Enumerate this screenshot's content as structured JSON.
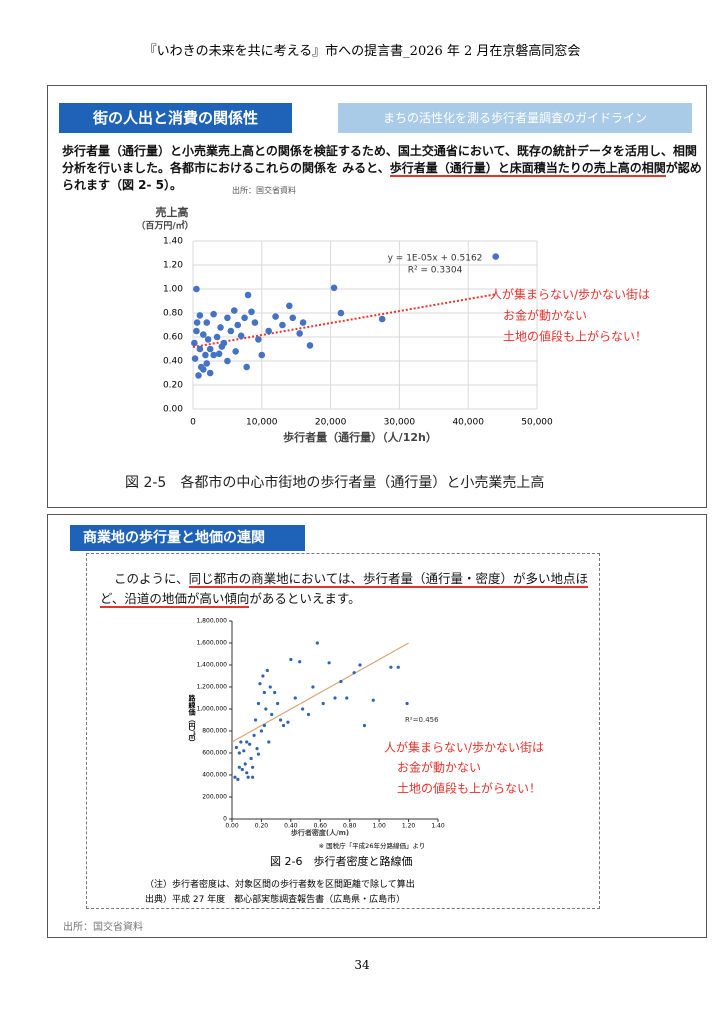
{
  "header": {
    "title": "『いわきの未来を共に考える』市への提言書_2026 年 2 月在京磐高同窓会"
  },
  "section1": {
    "heading": "街の人出と消費の関係性",
    "tab": "まちの活性化を測る歩行者量調査のガイドライン",
    "paragraph": [
      {
        "text": "歩行者量（通行量）と小売業売上高との関係を検証するため、国土交通省において、既存の統計データを活用し、相関分析を行いました。各都市におけるこれらの関係を みると、",
        "underline": false
      },
      {
        "text": "歩行者量（通行量）と床面積当たりの売上高の相関",
        "underline": true
      },
      {
        "text": "が認められます（図 2- 5）。",
        "underline": false
      }
    ],
    "source": "出所：国交省資料",
    "caption": "図 2-5　各都市の中心市街地の歩行者量（通行量）と小売業売上高"
  },
  "section2": {
    "heading": "商業地の歩行量と地価の連関",
    "paragraph": [
      {
        "text": "このように、",
        "underline": false
      },
      {
        "text": "同じ都市の商業地においては、歩行者量（通行量・密度）が多い地点ほど、沿道の地価が高い傾向",
        "underline": true
      },
      {
        "text": "があるといえます。",
        "underline": false
      }
    ],
    "caption": "図 2-6　歩行者密度と路線価",
    "notes": [
      "（注）歩行者密度は、対象区間の歩行者数を区間距離で除して算出",
      "出典）平成 27 年度　都心部実態調査報告書（広島県・広島市）"
    ],
    "source": "出所：国交省資料"
  },
  "chart_data": [
    {
      "type": "scatter",
      "y_label": "売上高",
      "y_unit": "（百万円/㎡）",
      "x_label": "歩行者量（通行量）（人/12h）",
      "color": "#4472c4",
      "grid": true,
      "xlim": [
        0,
        50000
      ],
      "xticks": [
        0,
        {
          "value": 10000,
          "label": "10,000"
        },
        {
          "value": 20000,
          "label": "20,000"
        },
        {
          "value": 30000,
          "label": "30,000"
        },
        {
          "value": 40000,
          "label": "40,000"
        },
        {
          "value": 50000,
          "label": "50,000"
        }
      ],
      "ylim": [
        0,
        1.4
      ],
      "yticks": [
        {
          "value": 0,
          "label": "0.00"
        },
        {
          "value": 0.2,
          "label": "0.20"
        },
        {
          "value": 0.4,
          "label": "0.40"
        },
        {
          "value": 0.6,
          "label": "0.60"
        },
        {
          "value": 0.8,
          "label": "0.80"
        },
        {
          "value": 1.0,
          "label": "1.00"
        },
        {
          "value": 1.2,
          "label": "1.20"
        },
        {
          "value": 1.4,
          "label": "1.40"
        }
      ],
      "x": [
        44000,
        20500,
        14000,
        21500,
        27500,
        17000,
        15500,
        14500,
        16000,
        13000,
        11000,
        10000,
        12000,
        9000,
        8500,
        8000,
        7500,
        7000,
        6500,
        6000,
        5500,
        5000,
        5000,
        4500,
        4000,
        3500,
        3000,
        3000,
        2500,
        2000,
        2000,
        1500,
        1500,
        1000,
        1000,
        800,
        500,
        500,
        300,
        200,
        1200,
        2500,
        3800,
        6200,
        9500,
        7800,
        4200,
        2200,
        600,
        1800
      ],
      "values": [
        1.27,
        1.01,
        0.86,
        0.8,
        0.75,
        0.53,
        0.63,
        0.76,
        0.72,
        0.7,
        0.65,
        0.45,
        0.77,
        0.72,
        0.81,
        0.95,
        0.76,
        0.61,
        0.7,
        0.82,
        0.65,
        0.76,
        0.4,
        0.55,
        0.68,
        0.6,
        0.79,
        0.45,
        0.5,
        0.72,
        0.38,
        0.62,
        0.33,
        0.78,
        0.5,
        0.28,
        0.65,
        1.0,
        0.42,
        0.55,
        0.35,
        0.3,
        0.46,
        0.48,
        0.58,
        0.35,
        0.52,
        0.58,
        0.72,
        0.45
      ],
      "trendline": {
        "slope": 1e-05,
        "intercept": 0.5162,
        "x_range": [
          0,
          44000
        ],
        "color": "#e8322c"
      },
      "annotations": [
        "y = 1E-05x + 0.5162",
        "R² = 0.3304"
      ],
      "comments": [
        "人が集まらない/歩かない街は",
        "お金が動かない",
        "土地の値段も上がらない！"
      ]
    },
    {
      "type": "scatter",
      "y_label": "路線価（円/㎡）",
      "x_label": "歩行者密度(人/m)",
      "note": "※ 国税庁「平成26年分路線価」より",
      "color": "#2e64b0",
      "grid": false,
      "xlim": [
        0,
        1.4
      ],
      "xticks": [
        {
          "value": 0,
          "label": "0.00"
        },
        {
          "value": 0.2,
          "label": "0.20"
        },
        {
          "value": 0.4,
          "label": "0.40"
        },
        {
          "value": 0.6,
          "label": "0.60"
        },
        {
          "value": 0.8,
          "label": "0.80"
        },
        {
          "value": 1.0,
          "label": "1.00"
        },
        {
          "value": 1.2,
          "label": "1.20"
        },
        {
          "value": 1.4,
          "label": "1.40"
        }
      ],
      "ylim": [
        0,
        1800000
      ],
      "yticks": [
        0,
        {
          "value": 200000,
          "label": "200,000"
        },
        {
          "value": 400000,
          "label": "400,000"
        },
        {
          "value": 600000,
          "label": "600,000"
        },
        {
          "value": 800000,
          "label": "800,000"
        },
        {
          "value": 1000000,
          "label": "1,000,000"
        },
        {
          "value": 1200000,
          "label": "1,200,000"
        },
        {
          "value": 1400000,
          "label": "1,400,000"
        },
        {
          "value": 1600000,
          "label": "1,600,000"
        },
        {
          "value": 1800000,
          "label": "1,800,000"
        }
      ],
      "x": [
        0.02,
        0.03,
        0.04,
        0.05,
        0.06,
        0.07,
        0.08,
        0.09,
        0.1,
        0.11,
        0.12,
        0.13,
        0.14,
        0.15,
        0.16,
        0.17,
        0.18,
        0.19,
        0.2,
        0.21,
        0.22,
        0.23,
        0.24,
        0.25,
        0.26,
        0.27,
        0.29,
        0.31,
        0.33,
        0.35,
        0.38,
        0.4,
        0.43,
        0.46,
        0.48,
        0.52,
        0.55,
        0.58,
        0.62,
        0.66,
        0.7,
        0.74,
        0.78,
        0.83,
        0.87,
        0.9,
        0.96,
        1.08,
        1.13,
        1.19,
        0.1,
        0.14,
        0.05,
        0.22,
        0.18
      ],
      "values": [
        380000,
        650000,
        360000,
        600000,
        700000,
        450000,
        620000,
        500000,
        420000,
        380000,
        680000,
        550000,
        470000,
        760000,
        900000,
        640000,
        1050000,
        1230000,
        800000,
        1300000,
        850000,
        1000000,
        1350000,
        700000,
        1200000,
        950000,
        1150000,
        1050000,
        900000,
        850000,
        880000,
        1450000,
        1100000,
        1430000,
        1000000,
        950000,
        1200000,
        1600000,
        1050000,
        1420000,
        1100000,
        1250000,
        1100000,
        1330000,
        1400000,
        850000,
        1080000,
        1380000,
        1380000,
        1050000,
        700000,
        380000,
        470000,
        1150000,
        590000
      ],
      "trendline": {
        "slope": 750000,
        "intercept": 700000,
        "x_range": [
          0,
          1.2
        ],
        "color": "#d9a67a"
      },
      "annotations": [
        "R²=0.456"
      ],
      "comments": [
        "人が集まらない/歩かない街は",
        "お金が動かない",
        "土地の値段も上がらない！"
      ]
    }
  ],
  "footer": {
    "page": "34"
  }
}
